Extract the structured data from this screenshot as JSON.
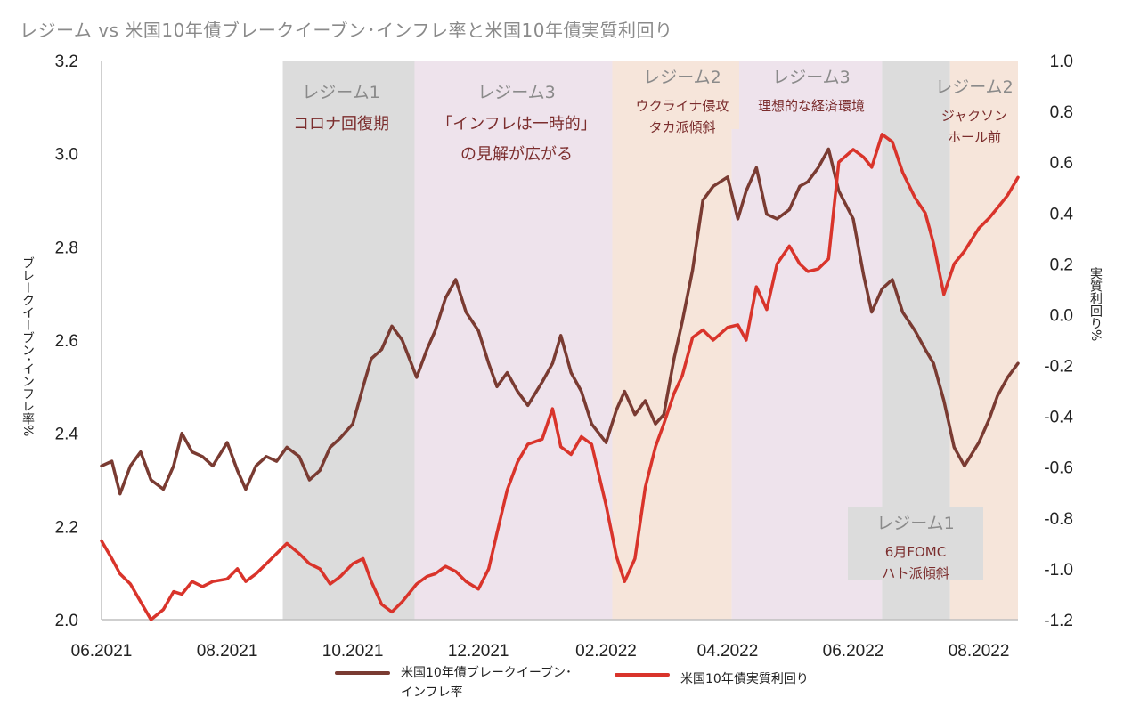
{
  "title": "レジーム vs 米国10年債ブレークイーブン･インフレ率と米国10年債実質利回り",
  "colors": {
    "breakeven": "#7a3b32",
    "real_yield": "#d9342b",
    "regime_gray": "#dcdcdc",
    "regime_pink": "#eee3ec",
    "regime_peach": "#f6e5da",
    "regime_title_text": "#8a8a8a",
    "regime_desc_text": "#7b2d2d"
  },
  "legend": {
    "breakeven": "米国10年債ブレークイーブン･\nインフレ率",
    "real_yield": "米国10年債実質利回り"
  },
  "chart_data": {
    "type": "line",
    "title": "レジーム vs 米国10年債ブレークイーブン･インフレ率と米国10年債実質利回り",
    "xlabel": "",
    "ylabel": "ブレークイーブン･インフレ率%",
    "y2label": "実質利回り%",
    "x_ticks": [
      "06.2021",
      "08.2021",
      "10.2021",
      "12.2021",
      "02.2022",
      "04.2022",
      "06.2022",
      "08.2022"
    ],
    "x_range": [
      "2021-06-01",
      "2022-08-20"
    ],
    "ylim": [
      2.0,
      3.2
    ],
    "y_ticks": [
      "2.0",
      "2.2",
      "2.4",
      "2.6",
      "2.8",
      "3.0",
      "3.2"
    ],
    "y2lim": [
      -1.2,
      1.0
    ],
    "y2_ticks": [
      "-1.2",
      "-1.0",
      "-0.8",
      "-0.6",
      "-0.4",
      "-0.2",
      "0.0",
      "0.2",
      "0.4",
      "0.6",
      "0.8",
      "1.0"
    ],
    "grid": false,
    "legend_position": "bottom",
    "regimes": [
      {
        "start": "2021-08-28",
        "end": "2021-10-31",
        "fill": "gray",
        "title": "レジーム1",
        "desc": "コロナ回復期"
      },
      {
        "start": "2021-10-31",
        "end": "2022-02-04",
        "fill": "pink",
        "title": "レジーム3",
        "desc": "「インフレは一時的」\nの見解が広がる"
      },
      {
        "start": "2022-02-04",
        "end": "2022-04-03",
        "fill": "peach",
        "title": "レジーム2",
        "desc": "ウクライナ侵攻\nタカ派傾斜"
      },
      {
        "start": "2022-04-03",
        "end": "2022-06-15",
        "fill": "pink",
        "title": "レジーム3",
        "desc": "理想的な経済環境"
      },
      {
        "start": "2022-06-15",
        "end": "2022-07-18",
        "fill": "gray",
        "title": "レジーム1",
        "desc": "6月FOMC\nハト派傾斜"
      },
      {
        "start": "2022-07-18",
        "end": "2022-08-20",
        "fill": "peach",
        "title": "レジーム2",
        "desc": "ジャクソン\nホール前"
      }
    ],
    "series": [
      {
        "name": "米国10年債ブレークイーブン･インフレ率",
        "axis": "left",
        "x": [
          "2021-06-01",
          "2021-06-06",
          "2021-06-10",
          "2021-06-15",
          "2021-06-20",
          "2021-06-25",
          "2021-07-01",
          "2021-07-06",
          "2021-07-10",
          "2021-07-15",
          "2021-07-20",
          "2021-07-25",
          "2021-08-01",
          "2021-08-06",
          "2021-08-10",
          "2021-08-15",
          "2021-08-20",
          "2021-08-25",
          "2021-08-30",
          "2021-09-05",
          "2021-09-10",
          "2021-09-15",
          "2021-09-20",
          "2021-09-25",
          "2021-10-01",
          "2021-10-06",
          "2021-10-10",
          "2021-10-15",
          "2021-10-20",
          "2021-10-25",
          "2021-11-01",
          "2021-11-06",
          "2021-11-10",
          "2021-11-15",
          "2021-11-20",
          "2021-11-25",
          "2021-12-01",
          "2021-12-06",
          "2021-12-10",
          "2021-12-15",
          "2021-12-20",
          "2021-12-25",
          "2022-01-01",
          "2022-01-06",
          "2022-01-10",
          "2022-01-15",
          "2022-01-20",
          "2022-01-25",
          "2022-02-01",
          "2022-02-06",
          "2022-02-10",
          "2022-02-15",
          "2022-02-20",
          "2022-02-25",
          "2022-03-01",
          "2022-03-06",
          "2022-03-10",
          "2022-03-15",
          "2022-03-20",
          "2022-03-25",
          "2022-04-01",
          "2022-04-06",
          "2022-04-10",
          "2022-04-15",
          "2022-04-20",
          "2022-04-25",
          "2022-05-01",
          "2022-05-06",
          "2022-05-10",
          "2022-05-15",
          "2022-05-20",
          "2022-05-25",
          "2022-06-01",
          "2022-06-06",
          "2022-06-10",
          "2022-06-15",
          "2022-06-20",
          "2022-06-25",
          "2022-07-01",
          "2022-07-06",
          "2022-07-10",
          "2022-07-15",
          "2022-07-20",
          "2022-07-25",
          "2022-08-01",
          "2022-08-06",
          "2022-08-10",
          "2022-08-15",
          "2022-08-20"
        ],
        "values": [
          2.33,
          2.34,
          2.27,
          2.33,
          2.36,
          2.3,
          2.28,
          2.33,
          2.4,
          2.36,
          2.35,
          2.33,
          2.38,
          2.32,
          2.28,
          2.33,
          2.35,
          2.34,
          2.37,
          2.35,
          2.3,
          2.32,
          2.37,
          2.39,
          2.42,
          2.5,
          2.56,
          2.58,
          2.63,
          2.6,
          2.52,
          2.58,
          2.62,
          2.69,
          2.73,
          2.66,
          2.62,
          2.55,
          2.5,
          2.53,
          2.49,
          2.46,
          2.51,
          2.55,
          2.61,
          2.53,
          2.49,
          2.42,
          2.38,
          2.45,
          2.49,
          2.44,
          2.47,
          2.42,
          2.44,
          2.56,
          2.64,
          2.75,
          2.9,
          2.93,
          2.95,
          2.86,
          2.92,
          2.97,
          2.87,
          2.86,
          2.88,
          2.93,
          2.94,
          2.97,
          3.01,
          2.92,
          2.86,
          2.74,
          2.66,
          2.71,
          2.73,
          2.66,
          2.62,
          2.58,
          2.55,
          2.47,
          2.37,
          2.33,
          2.38,
          2.43,
          2.48,
          2.52,
          2.55
        ]
      },
      {
        "name": "米国10年債実質利回り",
        "axis": "right",
        "x": [
          "2021-06-01",
          "2021-06-06",
          "2021-06-10",
          "2021-06-15",
          "2021-06-20",
          "2021-06-25",
          "2021-07-01",
          "2021-07-06",
          "2021-07-10",
          "2021-07-15",
          "2021-07-20",
          "2021-07-25",
          "2021-08-01",
          "2021-08-06",
          "2021-08-10",
          "2021-08-15",
          "2021-08-20",
          "2021-08-25",
          "2021-08-30",
          "2021-09-05",
          "2021-09-10",
          "2021-09-15",
          "2021-09-20",
          "2021-09-25",
          "2021-10-01",
          "2021-10-06",
          "2021-10-10",
          "2021-10-15",
          "2021-10-20",
          "2021-10-25",
          "2021-11-01",
          "2021-11-06",
          "2021-11-10",
          "2021-11-15",
          "2021-11-20",
          "2021-11-25",
          "2021-12-01",
          "2021-12-06",
          "2021-12-10",
          "2021-12-15",
          "2021-12-20",
          "2021-12-25",
          "2022-01-01",
          "2022-01-06",
          "2022-01-10",
          "2022-01-15",
          "2022-01-20",
          "2022-01-25",
          "2022-02-01",
          "2022-02-06",
          "2022-02-10",
          "2022-02-15",
          "2022-02-20",
          "2022-02-25",
          "2022-03-01",
          "2022-03-06",
          "2022-03-10",
          "2022-03-15",
          "2022-03-20",
          "2022-03-25",
          "2022-04-01",
          "2022-04-06",
          "2022-04-10",
          "2022-04-15",
          "2022-04-20",
          "2022-04-25",
          "2022-05-01",
          "2022-05-06",
          "2022-05-10",
          "2022-05-15",
          "2022-05-20",
          "2022-05-25",
          "2022-06-01",
          "2022-06-06",
          "2022-06-10",
          "2022-06-15",
          "2022-06-20",
          "2022-06-25",
          "2022-07-01",
          "2022-07-06",
          "2022-07-10",
          "2022-07-15",
          "2022-07-20",
          "2022-07-25",
          "2022-08-01",
          "2022-08-06",
          "2022-08-10",
          "2022-08-15",
          "2022-08-20"
        ],
        "values": [
          -0.89,
          -0.96,
          -1.02,
          -1.06,
          -1.13,
          -1.2,
          -1.16,
          -1.09,
          -1.1,
          -1.05,
          -1.07,
          -1.05,
          -1.04,
          -1.0,
          -1.05,
          -1.02,
          -0.98,
          -0.94,
          -0.9,
          -0.94,
          -0.98,
          -1.0,
          -1.06,
          -1.03,
          -0.98,
          -0.96,
          -1.05,
          -1.14,
          -1.17,
          -1.13,
          -1.06,
          -1.03,
          -1.02,
          -0.99,
          -1.01,
          -1.05,
          -1.08,
          -1.0,
          -0.86,
          -0.69,
          -0.58,
          -0.51,
          -0.49,
          -0.37,
          -0.52,
          -0.55,
          -0.48,
          -0.51,
          -0.75,
          -0.95,
          -1.05,
          -0.96,
          -0.68,
          -0.52,
          -0.43,
          -0.31,
          -0.24,
          -0.09,
          -0.06,
          -0.1,
          -0.05,
          -0.04,
          -0.1,
          0.11,
          0.02,
          0.2,
          0.27,
          0.2,
          0.17,
          0.18,
          0.22,
          0.6,
          0.65,
          0.62,
          0.58,
          0.71,
          0.68,
          0.56,
          0.46,
          0.4,
          0.28,
          0.08,
          0.2,
          0.25,
          0.34,
          0.38,
          0.42,
          0.47,
          0.54
        ]
      }
    ]
  }
}
